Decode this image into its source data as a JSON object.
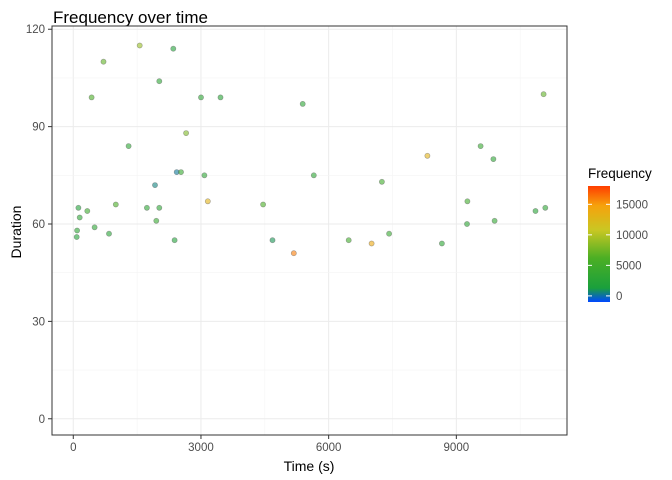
{
  "chart_data": {
    "type": "scatter",
    "title": "Frequency over time",
    "xlabel": "Time (s)",
    "ylabel": "Duration",
    "xlim": [
      -500,
      11600
    ],
    "ylim": [
      -5,
      121
    ],
    "xticks": [
      0,
      3000,
      6000,
      9000
    ],
    "yticks": [
      0,
      30,
      60,
      90,
      120
    ],
    "x_tick_labels": [
      "0",
      "3000",
      "6000",
      "9000"
    ],
    "y_tick_labels": [
      "0",
      "30",
      "60",
      "90",
      "120"
    ],
    "grid": true,
    "legend": {
      "title": "Frequency",
      "placement": "right",
      "breaks": [
        0,
        5000,
        10000,
        15000
      ],
      "labels": [
        "0",
        "5000",
        "10000",
        "15000"
      ],
      "limits": [
        -1000,
        18000
      ],
      "colors": [
        "#0047ff",
        "#1aa03c",
        "#4caf24",
        "#c9c723",
        "#f6a20c",
        "#ff3d00"
      ]
    },
    "point_style": {
      "alpha": 0.6,
      "outline": "#555555"
    },
    "points": [
      [
        120,
        65,
        2000
      ],
      [
        150,
        62,
        3000
      ],
      [
        330,
        64,
        4500
      ],
      [
        430,
        99,
        6000
      ],
      [
        710,
        110,
        7000
      ],
      [
        1300,
        84,
        3000
      ],
      [
        1560,
        115,
        9000
      ],
      [
        2020,
        104,
        3000
      ],
      [
        2350,
        114,
        2000
      ],
      [
        2650,
        88,
        8000
      ],
      [
        3000,
        99,
        3000
      ],
      [
        3460,
        99,
        2500
      ],
      [
        5390,
        97,
        3000
      ],
      [
        5650,
        75,
        3000
      ],
      [
        7250,
        73,
        5000
      ],
      [
        8320,
        81,
        13000
      ],
      [
        9570,
        84,
        4000
      ],
      [
        9870,
        80,
        3000
      ],
      [
        11050,
        100,
        7000
      ],
      [
        1920,
        72,
        500
      ],
      [
        2430,
        76,
        200
      ],
      [
        2530,
        76,
        4000
      ],
      [
        3080,
        75,
        3000
      ],
      [
        4460,
        66,
        6000
      ],
      [
        1730,
        65,
        3000
      ],
      [
        3160,
        67,
        13000
      ],
      [
        840,
        57,
        2500
      ],
      [
        1000,
        66,
        6000
      ],
      [
        90,
        58,
        3000
      ],
      [
        80,
        56,
        2000
      ],
      [
        500,
        59,
        3000
      ],
      [
        1950,
        61,
        4000
      ],
      [
        2020,
        65,
        3000
      ],
      [
        6470,
        55,
        5000
      ],
      [
        7010,
        54,
        14000
      ],
      [
        7420,
        57,
        4000
      ],
      [
        8660,
        54,
        3000
      ],
      [
        9250,
        60,
        3000
      ],
      [
        9900,
        61,
        3500
      ],
      [
        10860,
        64,
        2500
      ],
      [
        11090,
        65,
        3000
      ],
      [
        9260,
        67,
        5000
      ],
      [
        2380,
        55,
        2000
      ],
      [
        4680,
        55,
        1000
      ],
      [
        5180,
        51,
        16000
      ]
    ]
  }
}
